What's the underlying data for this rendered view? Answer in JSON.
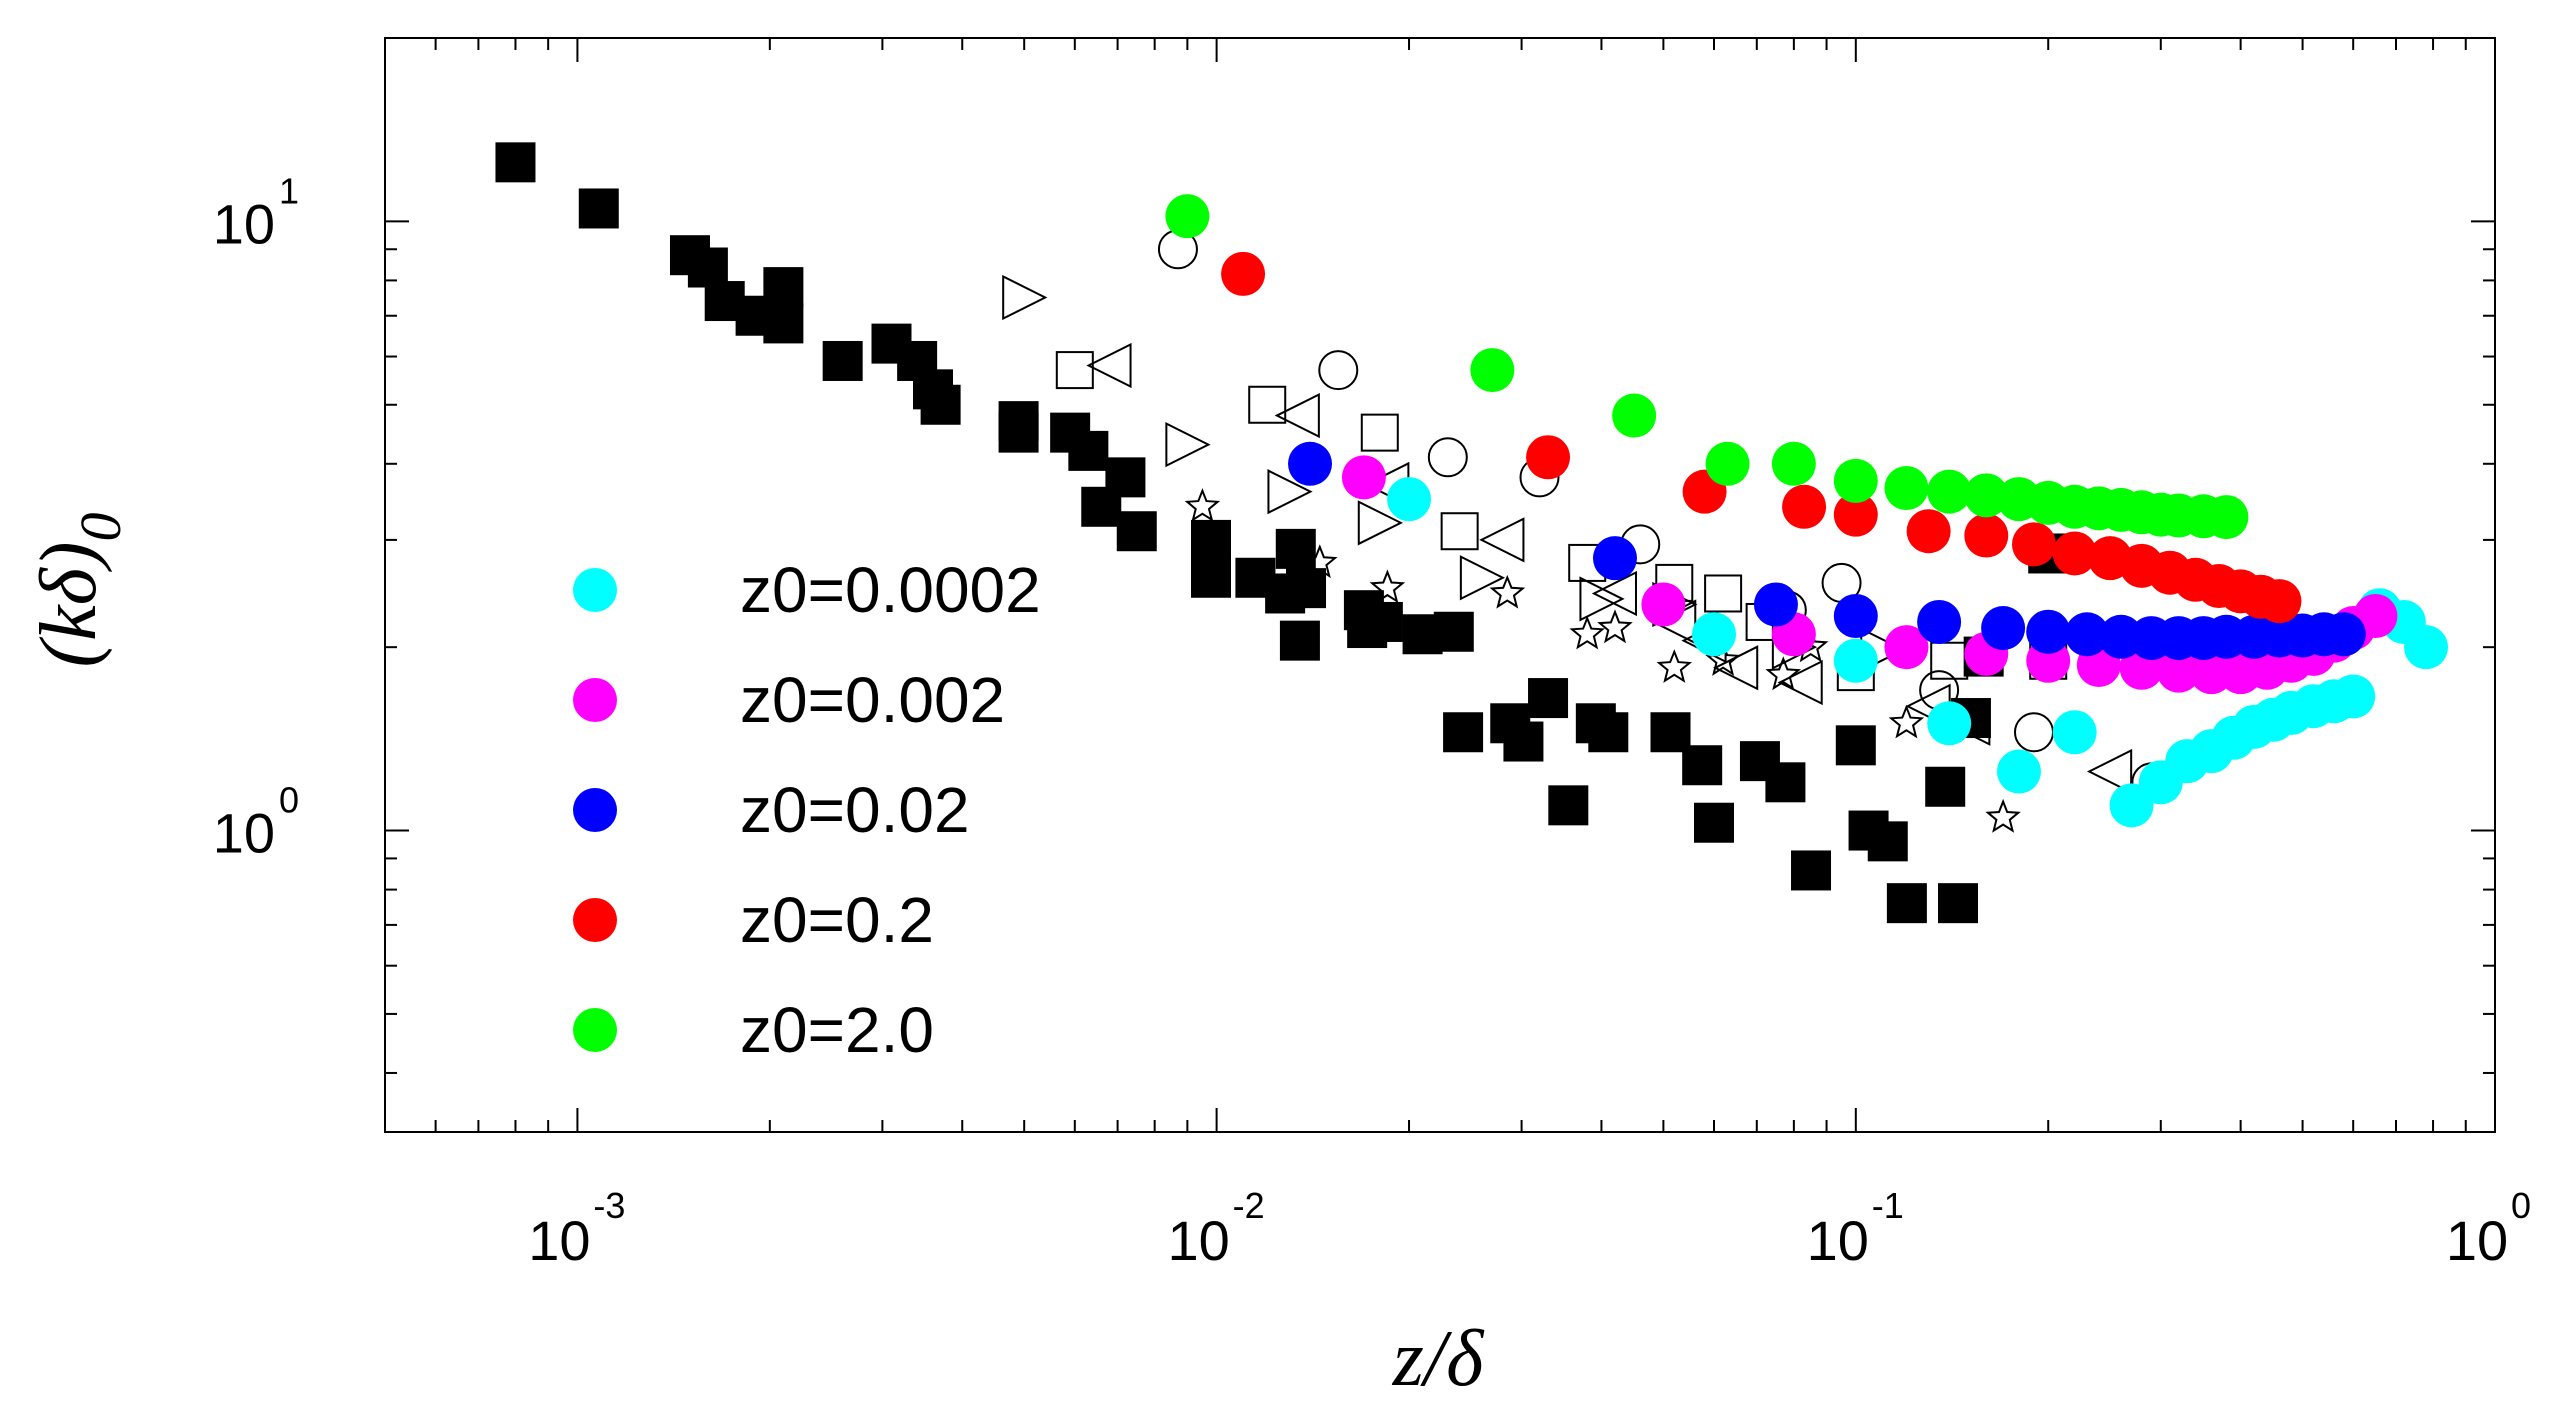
{
  "chart_data": {
    "type": "scatter",
    "title": "",
    "xlabel": "z/δ",
    "ylabel_main": "(kδ)",
    "ylabel_sub": "0",
    "x_scale": "log",
    "y_scale": "log",
    "xlim": [
      0.0005,
      1
    ],
    "ylim": [
      0.32,
      20
    ],
    "grid": false,
    "legend_position": "left",
    "x_ticks": [
      {
        "base": "10",
        "exp": "-3",
        "value": 0.001
      },
      {
        "base": "10",
        "exp": "-2",
        "value": 0.01
      },
      {
        "base": "10",
        "exp": "-1",
        "value": 0.1
      },
      {
        "base": "10",
        "exp": "0",
        "value": 1
      }
    ],
    "y_ticks": [
      {
        "base": "10",
        "exp": "1",
        "value": 10
      },
      {
        "base": "10",
        "exp": "0",
        "value": 1
      }
    ],
    "series": [
      {
        "name": "z0=0.0002",
        "marker": "circle",
        "filled": true,
        "color": "#00ffff",
        "show_in_legend": true,
        "points": [
          [
            0.02,
            3.5
          ],
          [
            0.06,
            2.1
          ],
          [
            0.1,
            1.9
          ],
          [
            0.14,
            1.5
          ],
          [
            0.18,
            1.25
          ],
          [
            0.22,
            1.45
          ],
          [
            0.27,
            1.1
          ],
          [
            0.3,
            1.2
          ],
          [
            0.33,
            1.3
          ],
          [
            0.36,
            1.35
          ],
          [
            0.39,
            1.42
          ],
          [
            0.42,
            1.48
          ],
          [
            0.45,
            1.52
          ],
          [
            0.48,
            1.56
          ],
          [
            0.52,
            1.6
          ],
          [
            0.56,
            1.63
          ],
          [
            0.6,
            1.66
          ],
          [
            0.66,
            2.3
          ],
          [
            0.72,
            2.2
          ],
          [
            0.78,
            2.0
          ]
        ]
      },
      {
        "name": "z0=0.002",
        "marker": "circle",
        "filled": true,
        "color": "#ff00ff",
        "show_in_legend": true,
        "points": [
          [
            0.017,
            3.8
          ],
          [
            0.05,
            2.35
          ],
          [
            0.08,
            2.1
          ],
          [
            0.12,
            2.0
          ],
          [
            0.16,
            1.95
          ],
          [
            0.2,
            1.9
          ],
          [
            0.24,
            1.87
          ],
          [
            0.28,
            1.85
          ],
          [
            0.32,
            1.83
          ],
          [
            0.36,
            1.82
          ],
          [
            0.4,
            1.82
          ],
          [
            0.44,
            1.85
          ],
          [
            0.48,
            1.9
          ],
          [
            0.52,
            1.95
          ],
          [
            0.56,
            2.05
          ],
          [
            0.6,
            2.15
          ],
          [
            0.65,
            2.25
          ]
        ]
      },
      {
        "name": "z0=0.02",
        "marker": "circle",
        "filled": true,
        "color": "#0000ff",
        "show_in_legend": true,
        "points": [
          [
            0.014,
            4.0
          ],
          [
            0.042,
            2.8
          ],
          [
            0.075,
            2.35
          ],
          [
            0.1,
            2.25
          ],
          [
            0.135,
            2.2
          ],
          [
            0.17,
            2.15
          ],
          [
            0.2,
            2.12
          ],
          [
            0.23,
            2.1
          ],
          [
            0.26,
            2.08
          ],
          [
            0.29,
            2.07
          ],
          [
            0.32,
            2.07
          ],
          [
            0.35,
            2.07
          ],
          [
            0.38,
            2.08
          ],
          [
            0.42,
            2.08
          ],
          [
            0.46,
            2.09
          ],
          [
            0.5,
            2.09
          ],
          [
            0.54,
            2.1
          ],
          [
            0.58,
            2.1
          ]
        ]
      },
      {
        "name": "z0=0.2",
        "marker": "circle",
        "filled": true,
        "color": "#ff0000",
        "show_in_legend": true,
        "points": [
          [
            0.011,
            8.2
          ],
          [
            0.033,
            4.1
          ],
          [
            0.058,
            3.6
          ],
          [
            0.083,
            3.4
          ],
          [
            0.1,
            3.3
          ],
          [
            0.13,
            3.1
          ],
          [
            0.16,
            3.05
          ],
          [
            0.19,
            2.95
          ],
          [
            0.22,
            2.85
          ],
          [
            0.25,
            2.8
          ],
          [
            0.28,
            2.72
          ],
          [
            0.31,
            2.65
          ],
          [
            0.34,
            2.58
          ],
          [
            0.37,
            2.52
          ],
          [
            0.4,
            2.47
          ],
          [
            0.43,
            2.42
          ],
          [
            0.46,
            2.38
          ]
        ]
      },
      {
        "name": "z0=2.0",
        "marker": "circle",
        "filled": true,
        "color": "#00ff00",
        "show_in_legend": true,
        "points": [
          [
            0.009,
            10.2
          ],
          [
            0.027,
            5.7
          ],
          [
            0.045,
            4.8
          ],
          [
            0.063,
            4.0
          ],
          [
            0.08,
            4.0
          ],
          [
            0.1,
            3.75
          ],
          [
            0.12,
            3.65
          ],
          [
            0.14,
            3.6
          ],
          [
            0.16,
            3.55
          ],
          [
            0.18,
            3.5
          ],
          [
            0.2,
            3.45
          ],
          [
            0.22,
            3.4
          ],
          [
            0.24,
            3.38
          ],
          [
            0.26,
            3.36
          ],
          [
            0.28,
            3.33
          ],
          [
            0.3,
            3.3
          ],
          [
            0.32,
            3.29
          ],
          [
            0.35,
            3.28
          ],
          [
            0.38,
            3.27
          ]
        ]
      },
      {
        "name": "black filled squares",
        "marker": "square",
        "filled": true,
        "color": "#000000",
        "show_in_legend": false,
        "points": [
          [
            0.0008,
            12.5
          ],
          [
            0.00108,
            10.5
          ],
          [
            0.0015,
            8.8
          ],
          [
            0.0016,
            8.4
          ],
          [
            0.0017,
            7.4
          ],
          [
            0.0019,
            7.0
          ],
          [
            0.0021,
            7.8
          ],
          [
            0.0021,
            6.8
          ],
          [
            0.0026,
            5.9
          ],
          [
            0.0031,
            6.3
          ],
          [
            0.0034,
            5.9
          ],
          [
            0.0036,
            5.3
          ],
          [
            0.0037,
            5.0
          ],
          [
            0.0049,
            4.7
          ],
          [
            0.0049,
            4.5
          ],
          [
            0.0059,
            4.5
          ],
          [
            0.0063,
            4.2
          ],
          [
            0.0066,
            3.4
          ],
          [
            0.0072,
            3.8
          ],
          [
            0.0075,
            3.1
          ],
          [
            0.0098,
            3.0
          ],
          [
            0.0098,
            2.6
          ],
          [
            0.0115,
            2.6
          ],
          [
            0.0128,
            2.45
          ],
          [
            0.0133,
            2.9
          ],
          [
            0.0135,
            2.05
          ],
          [
            0.0138,
            2.5
          ],
          [
            0.017,
            2.3
          ],
          [
            0.0172,
            2.15
          ],
          [
            0.0182,
            2.2
          ],
          [
            0.021,
            2.1
          ],
          [
            0.0235,
            2.12
          ],
          [
            0.0243,
            1.45
          ],
          [
            0.0288,
            1.5
          ],
          [
            0.0302,
            1.4
          ],
          [
            0.033,
            1.65
          ],
          [
            0.0355,
            1.1
          ],
          [
            0.0392,
            1.5
          ],
          [
            0.041,
            1.45
          ],
          [
            0.0513,
            1.45
          ],
          [
            0.0575,
            1.28
          ],
          [
            0.06,
            1.03
          ],
          [
            0.0708,
            1.3
          ],
          [
            0.0776,
            1.2
          ],
          [
            0.0851,
            0.86
          ],
          [
            0.1,
            1.38
          ],
          [
            0.1047,
            1.0
          ],
          [
            0.1122,
            0.96
          ],
          [
            0.1202,
            0.76
          ],
          [
            0.138,
            1.18
          ],
          [
            0.1445,
            0.76
          ],
          [
            0.1514,
            1.53
          ],
          [
            0.1585,
            1.93
          ],
          [
            0.2,
            2.85
          ]
        ]
      },
      {
        "name": "open circles",
        "marker": "circle",
        "filled": false,
        "color": "#000000",
        "show_in_legend": false,
        "points": [
          [
            0.0087,
            9.0
          ],
          [
            0.0155,
            5.7
          ],
          [
            0.023,
            4.1
          ],
          [
            0.032,
            3.8
          ],
          [
            0.046,
            2.95
          ],
          [
            0.078,
            2.3
          ],
          [
            0.095,
            2.55
          ],
          [
            0.135,
            1.7
          ],
          [
            0.19,
            1.45
          ],
          [
            0.29,
            1.2
          ]
        ]
      },
      {
        "name": "open squares",
        "marker": "square",
        "filled": false,
        "color": "#000000",
        "show_in_legend": false,
        "points": [
          [
            0.006,
            5.7
          ],
          [
            0.012,
            5.0
          ],
          [
            0.018,
            4.5
          ],
          [
            0.024,
            3.1
          ],
          [
            0.038,
            2.75
          ],
          [
            0.052,
            2.55
          ],
          [
            0.062,
            2.45
          ],
          [
            0.072,
            2.2
          ],
          [
            0.1,
            1.82
          ],
          [
            0.14,
            1.9
          ],
          [
            0.2,
            1.9
          ]
        ]
      },
      {
        "name": "open right triangles",
        "marker": "triangle-right",
        "filled": false,
        "color": "#000000",
        "show_in_legend": false,
        "points": [
          [
            0.005,
            7.5
          ],
          [
            0.009,
            4.3
          ],
          [
            0.013,
            3.6
          ],
          [
            0.018,
            3.2
          ],
          [
            0.026,
            2.6
          ],
          [
            0.04,
            2.4
          ],
          [
            0.052,
            2.35
          ],
          [
            0.08,
            2.0
          ],
          [
            0.11,
            1.98
          ]
        ]
      },
      {
        "name": "open left triangles",
        "marker": "triangle-left",
        "filled": false,
        "color": "#000000",
        "show_in_legend": false,
        "points": [
          [
            0.0068,
            5.8
          ],
          [
            0.0134,
            4.8
          ],
          [
            0.0185,
            3.7
          ],
          [
            0.028,
            3.0
          ],
          [
            0.042,
            2.45
          ],
          [
            0.052,
            2.2
          ],
          [
            0.058,
            2.05
          ],
          [
            0.065,
            1.85
          ],
          [
            0.082,
            1.75
          ],
          [
            0.13,
            1.6
          ],
          [
            0.15,
            1.5
          ],
          [
            0.25,
            1.25
          ]
        ]
      },
      {
        "name": "open stars",
        "marker": "star",
        "filled": false,
        "color": "#000000",
        "show_in_legend": false,
        "points": [
          [
            0.0095,
            3.4
          ],
          [
            0.0145,
            2.75
          ],
          [
            0.0185,
            2.5
          ],
          [
            0.0285,
            2.45
          ],
          [
            0.038,
            2.1
          ],
          [
            0.042,
            2.15
          ],
          [
            0.052,
            1.85
          ],
          [
            0.062,
            1.9
          ],
          [
            0.077,
            1.8
          ],
          [
            0.085,
            2.0
          ],
          [
            0.12,
            1.5
          ],
          [
            0.17,
            1.05
          ]
        ]
      }
    ]
  }
}
